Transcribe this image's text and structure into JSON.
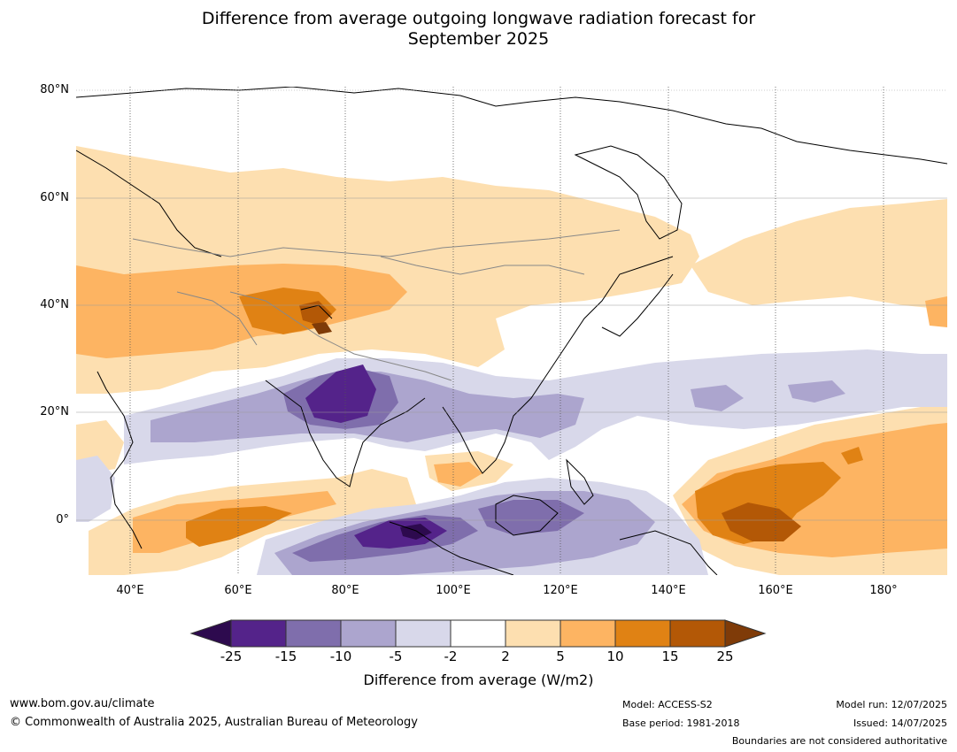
{
  "title": {
    "line1": "Difference from average outgoing longwave radiation forecast for",
    "line2": "September 2025"
  },
  "map": {
    "projection": "plate carree",
    "lon_range": [
      30,
      192
    ],
    "lat_range": [
      -10,
      81
    ],
    "lat_ticks": [
      "80°N",
      "60°N",
      "40°N",
      "20°N",
      "0°"
    ],
    "lon_ticks": [
      "40°E",
      "60°E",
      "80°E",
      "100°E",
      "120°E",
      "140°E",
      "160°E",
      "180°"
    ],
    "gridlines": true,
    "land_outlines": "black coastlines, grey country boundaries"
  },
  "colorbar": {
    "labels": [
      "-25",
      "-15",
      "-10",
      "-5",
      "-2",
      "2",
      "5",
      "10",
      "15",
      "25"
    ],
    "colors": [
      "#2d0a4e",
      "#54238a",
      "#7f6eac",
      "#aca5ce",
      "#d8d8ea",
      "#ffffff",
      "#fddfb0",
      "#fdb462",
      "#e08214",
      "#b35806",
      "#7f3b08"
    ],
    "extend": "both",
    "title": "Difference from average (W/m2)"
  },
  "footer": {
    "url": "www.bom.gov.au/climate",
    "copyright": "© Commonwealth of Australia 2025, Australian Bureau of Meteorology",
    "model": "Model: ACCESS-S2",
    "base_period": "Base period: 1981-2018",
    "model_run": "Model run: 12/07/2025",
    "issued": "Issued: 14/07/2025",
    "disclaimer": "Boundaries are not considered authoritative"
  }
}
